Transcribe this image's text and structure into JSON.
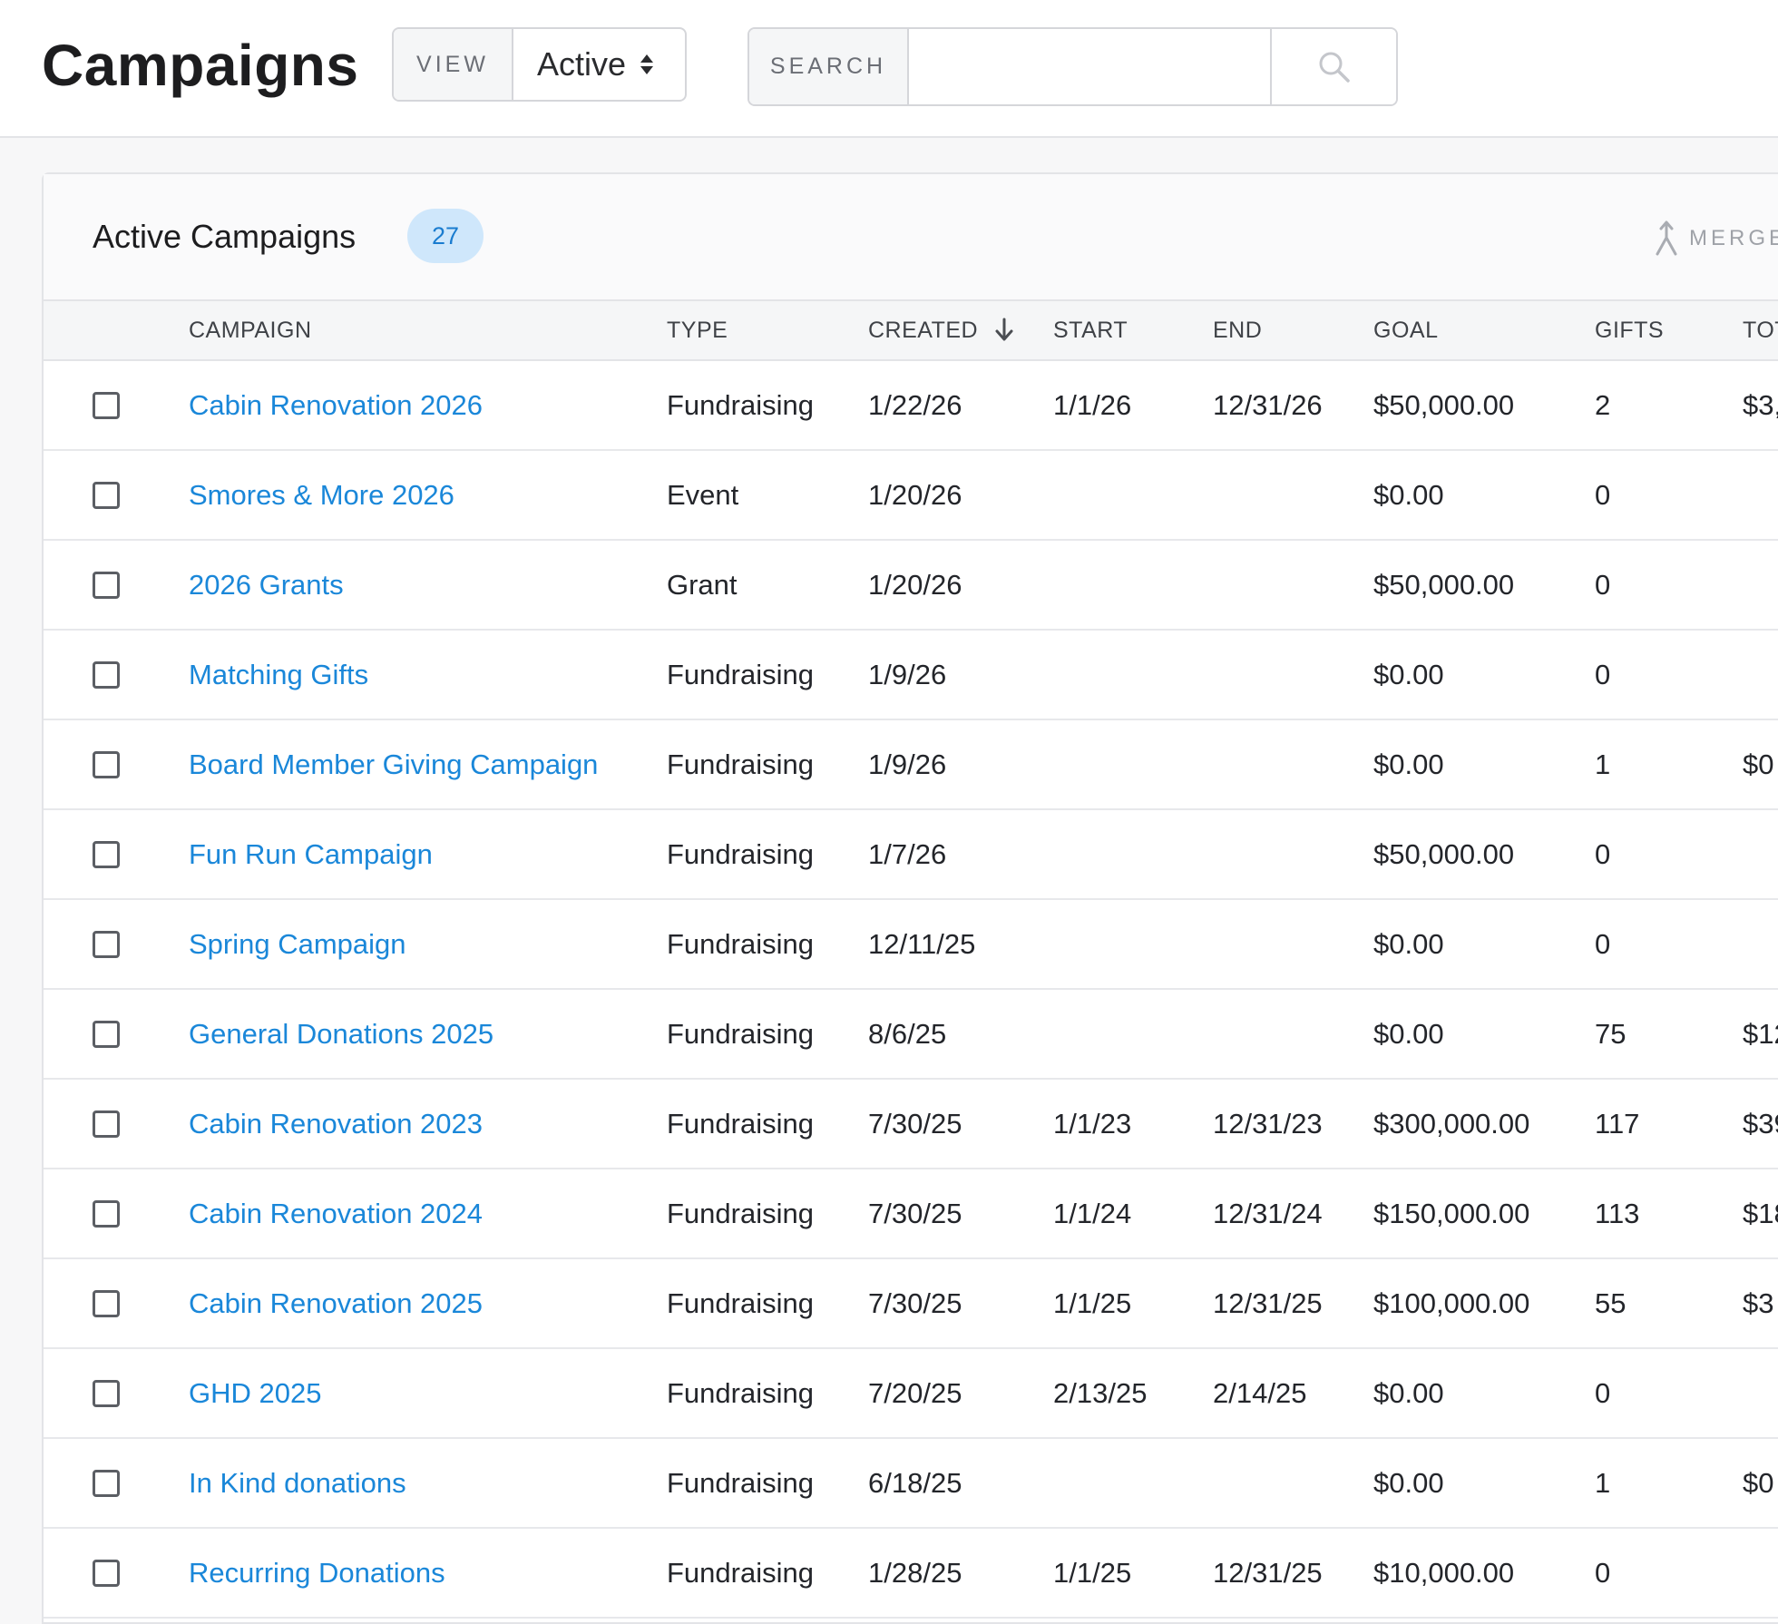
{
  "header": {
    "title": "Campaigns",
    "view_label": "VIEW",
    "view_value": "Active",
    "search_label": "SEARCH",
    "search_value": "",
    "search_placeholder": ""
  },
  "card": {
    "title": "Active Campaigns",
    "count": "27",
    "merge_label": "MERGE"
  },
  "table": {
    "columns": {
      "campaign": "CAMPAIGN",
      "type": "TYPE",
      "created": "CREATED",
      "start": "START",
      "end": "END",
      "goal": "GOAL",
      "gifts": "GIFTS",
      "total": "TOTAL"
    },
    "sort": {
      "column": "created",
      "direction": "descending"
    },
    "rows": [
      {
        "campaign": "Cabin Renovation 2026",
        "type": "Fundraising",
        "created": "1/22/26",
        "start": "1/1/26",
        "end": "12/31/26",
        "goal": "$50,000.00",
        "gifts": "2",
        "total": "$3,"
      },
      {
        "campaign": "Smores & More 2026",
        "type": "Event",
        "created": "1/20/26",
        "start": "",
        "end": "",
        "goal": "$0.00",
        "gifts": "0",
        "total": ""
      },
      {
        "campaign": "2026 Grants",
        "type": "Grant",
        "created": "1/20/26",
        "start": "",
        "end": "",
        "goal": "$50,000.00",
        "gifts": "0",
        "total": ""
      },
      {
        "campaign": "Matching Gifts",
        "type": "Fundraising",
        "created": "1/9/26",
        "start": "",
        "end": "",
        "goal": "$0.00",
        "gifts": "0",
        "total": ""
      },
      {
        "campaign": "Board Member Giving Campaign",
        "type": "Fundraising",
        "created": "1/9/26",
        "start": "",
        "end": "",
        "goal": "$0.00",
        "gifts": "1",
        "total": "$0"
      },
      {
        "campaign": "Fun Run Campaign",
        "type": "Fundraising",
        "created": "1/7/26",
        "start": "",
        "end": "",
        "goal": "$50,000.00",
        "gifts": "0",
        "total": ""
      },
      {
        "campaign": "Spring Campaign",
        "type": "Fundraising",
        "created": "12/11/25",
        "start": "",
        "end": "",
        "goal": "$0.00",
        "gifts": "0",
        "total": ""
      },
      {
        "campaign": "General Donations 2025",
        "type": "Fundraising",
        "created": "8/6/25",
        "start": "",
        "end": "",
        "goal": "$0.00",
        "gifts": "75",
        "total": "$12"
      },
      {
        "campaign": "Cabin Renovation 2023",
        "type": "Fundraising",
        "created": "7/30/25",
        "start": "1/1/23",
        "end": "12/31/23",
        "goal": "$300,000.00",
        "gifts": "117",
        "total": "$39"
      },
      {
        "campaign": "Cabin Renovation 2024",
        "type": "Fundraising",
        "created": "7/30/25",
        "start": "1/1/24",
        "end": "12/31/24",
        "goal": "$150,000.00",
        "gifts": "113",
        "total": "$18"
      },
      {
        "campaign": "Cabin Renovation 2025",
        "type": "Fundraising",
        "created": "7/30/25",
        "start": "1/1/25",
        "end": "12/31/25",
        "goal": "$100,000.00",
        "gifts": "55",
        "total": "$3"
      },
      {
        "campaign": "GHD 2025",
        "type": "Fundraising",
        "created": "7/20/25",
        "start": "2/13/25",
        "end": "2/14/25",
        "goal": "$0.00",
        "gifts": "0",
        "total": ""
      },
      {
        "campaign": "In Kind donations",
        "type": "Fundraising",
        "created": "6/18/25",
        "start": "",
        "end": "",
        "goal": "$0.00",
        "gifts": "1",
        "total": "$0"
      },
      {
        "campaign": "Recurring Donations",
        "type": "Fundraising",
        "created": "1/28/25",
        "start": "1/1/25",
        "end": "12/31/25",
        "goal": "$10,000.00",
        "gifts": "0",
        "total": ""
      }
    ]
  },
  "colors": {
    "link": "#1a87d9",
    "badge_bg": "#cfe7fb",
    "badge_text": "#1a7ccf",
    "border": "#e3e4e7"
  },
  "icons": {
    "search": "search-icon",
    "merge": "merge-icon",
    "sort": "arrow-down-icon",
    "view_select": "select-arrows-icon"
  }
}
